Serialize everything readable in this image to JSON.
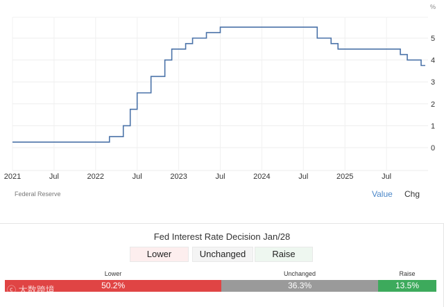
{
  "chart_data": {
    "type": "line",
    "step": true,
    "unit_label": "%",
    "x_ticks": [
      "2021",
      "Jul",
      "2022",
      "Jul",
      "2023",
      "Jul",
      "2024",
      "Jul",
      "2025",
      "Jul"
    ],
    "x_tick_dates": [
      "2021-01",
      "2021-07",
      "2022-01",
      "2022-07",
      "2023-01",
      "2023-07",
      "2024-01",
      "2024-07",
      "2025-01",
      "2025-07"
    ],
    "y_ticks": [
      0,
      1,
      2,
      3,
      4,
      5
    ],
    "ylim": [
      -1,
      6
    ],
    "xlim": [
      "2021-01",
      "2025-12"
    ],
    "grid": true,
    "color": "#4a72a8",
    "series": [
      {
        "points": [
          [
            "2021-01",
            0.25
          ],
          [
            "2022-03",
            0.5
          ],
          [
            "2022-05",
            1.0
          ],
          [
            "2022-06",
            1.75
          ],
          [
            "2022-07",
            2.5
          ],
          [
            "2022-09",
            3.25
          ],
          [
            "2022-11",
            4.0
          ],
          [
            "2022-12",
            4.5
          ],
          [
            "2023-02",
            4.75
          ],
          [
            "2023-03",
            5.0
          ],
          [
            "2023-05",
            5.25
          ],
          [
            "2023-07",
            5.5
          ],
          [
            "2024-09",
            5.0
          ],
          [
            "2024-11",
            4.75
          ],
          [
            "2024-12",
            4.5
          ],
          [
            "2025-09",
            4.25
          ],
          [
            "2025-10",
            4.0
          ],
          [
            "2025-12",
            3.75
          ]
        ]
      }
    ]
  },
  "source": "Federal Reserve",
  "toggle": {
    "value": "Value",
    "chg": "Chg"
  },
  "decision": {
    "title": "Fed Interest Rate Decision Jan/28",
    "buttons": [
      "Lower",
      "Unchanged",
      "Raise"
    ],
    "results": [
      {
        "label": "Lower",
        "value": "50.2%",
        "pct": 50.2,
        "color": "#e04444"
      },
      {
        "label": "Unchanged",
        "value": "36.3%",
        "pct": 36.3,
        "color": "#9a9a9a"
      },
      {
        "label": "Raise",
        "value": "13.5%",
        "pct": 13.5,
        "color": "#3daa5c"
      }
    ]
  },
  "watermark": "大数跨境"
}
